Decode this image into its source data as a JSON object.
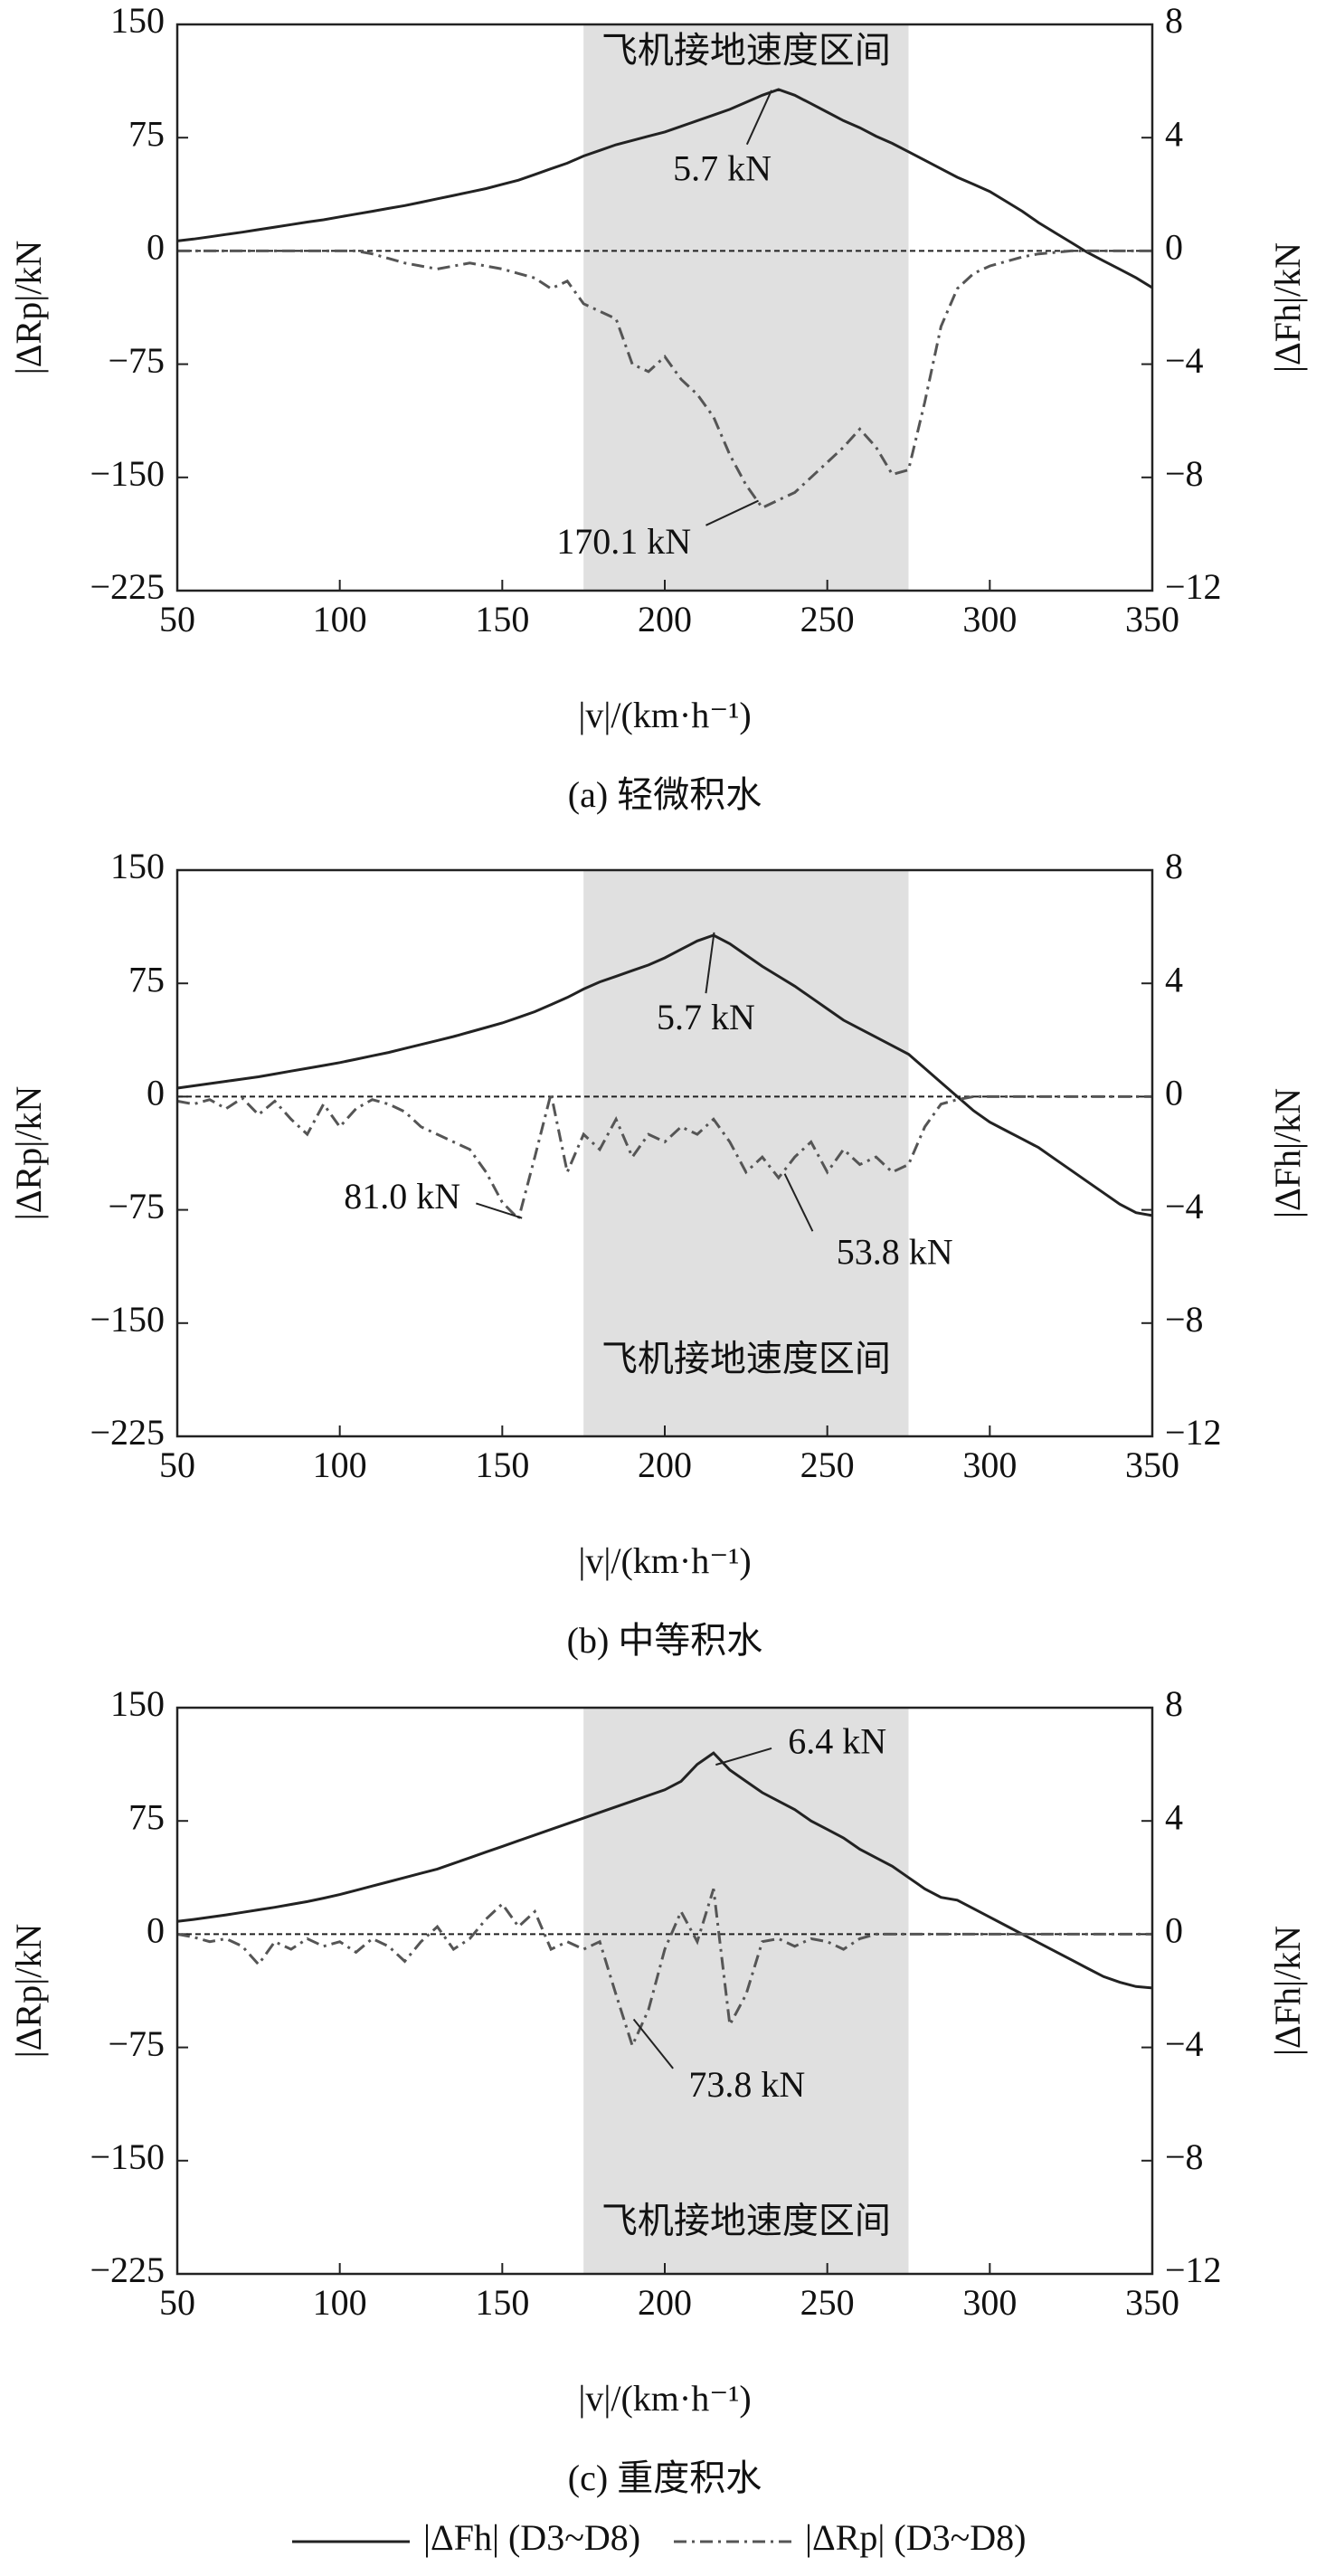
{
  "chart_data": [
    {
      "type": "line",
      "caption": "(a) 轻微积水",
      "xlabel": "|v|/(km·h⁻¹)",
      "ylabel": "|ΔRp|/kN",
      "y2label": "|ΔFh|/kN",
      "span": [
        175,
        275
      ],
      "span_label": "飞机接地速度区间",
      "annotations": [
        "5.7 kN",
        "170.1 kN"
      ],
      "xlim": [
        50,
        350
      ],
      "xticks": [
        50,
        100,
        150,
        200,
        250,
        300,
        350
      ],
      "ylim": [
        -225,
        150
      ],
      "yticks": [
        {
          "value": -225,
          "label": "−225"
        },
        {
          "value": -150,
          "label": "−150"
        },
        {
          "value": -75,
          "label": "−75"
        },
        0,
        75,
        150
      ],
      "y2lim": [
        -12,
        8
      ],
      "y2ticks": [
        {
          "value": -12,
          "label": "−12"
        },
        {
          "value": -8,
          "label": "−8"
        },
        {
          "value": -4,
          "label": "−4"
        },
        0,
        4,
        8
      ],
      "x": [
        50,
        55,
        60,
        65,
        70,
        75,
        80,
        85,
        90,
        95,
        100,
        105,
        110,
        115,
        120,
        125,
        130,
        135,
        140,
        145,
        150,
        155,
        160,
        165,
        170,
        175,
        180,
        185,
        190,
        195,
        200,
        205,
        210,
        215,
        220,
        225,
        230,
        235,
        240,
        245,
        250,
        255,
        260,
        265,
        270,
        275,
        280,
        285,
        290,
        295,
        300,
        305,
        310,
        315,
        320,
        325,
        330,
        335,
        340,
        345,
        350
      ],
      "series": [
        {
          "color": "#222222",
          "style": "solid",
          "axis": "y2",
          "values": [
            0.35,
            0.42,
            0.5,
            0.58,
            0.66,
            0.75,
            0.84,
            0.93,
            1.02,
            1.1,
            1.2,
            1.3,
            1.4,
            1.5,
            1.6,
            1.72,
            1.84,
            1.96,
            2.08,
            2.2,
            2.35,
            2.5,
            2.7,
            2.9,
            3.1,
            3.35,
            3.55,
            3.75,
            3.9,
            4.05,
            4.2,
            4.4,
            4.6,
            4.8,
            5.0,
            5.25,
            5.5,
            5.7,
            5.5,
            5.2,
            4.9,
            4.6,
            4.35,
            4.05,
            3.8,
            3.5,
            3.2,
            2.9,
            2.6,
            2.35,
            2.1,
            1.75,
            1.4,
            1.0,
            0.65,
            0.3,
            -0.05,
            -0.35,
            -0.65,
            -0.95,
            -1.3
          ]
        },
        {
          "color": "#555555",
          "style": "dashdot",
          "axis": "y",
          "values": [
            0,
            0,
            0,
            0,
            0,
            0,
            0,
            0,
            0,
            0,
            0,
            0,
            -2,
            -5,
            -8,
            -10,
            -12,
            -10,
            -8,
            -10,
            -12,
            -15,
            -18,
            -25,
            -20,
            -35,
            -40,
            -45,
            -75,
            -80,
            -70,
            -85,
            -95,
            -110,
            -135,
            -155,
            -170.1,
            -165,
            -160,
            -150,
            -140,
            -130,
            -118,
            -130,
            -148,
            -145,
            -100,
            -50,
            -25,
            -15,
            -10,
            -7,
            -4,
            -2,
            -1,
            0,
            0,
            0,
            0,
            0,
            0
          ]
        }
      ]
    },
    {
      "type": "line",
      "caption": "(b) 中等积水",
      "xlabel": "|v|/(km·h⁻¹)",
      "ylabel": "|ΔRp|/kN",
      "y2label": "|ΔFh|/kN",
      "span": [
        175,
        275
      ],
      "span_label": "飞机接地速度区间",
      "annotations": [
        "5.7 kN",
        "81.0 kN",
        "53.8 kN"
      ],
      "xlim": [
        50,
        350
      ],
      "xticks": [
        50,
        100,
        150,
        200,
        250,
        300,
        350
      ],
      "ylim": [
        -225,
        150
      ],
      "yticks": [
        {
          "value": -225,
          "label": "−225"
        },
        {
          "value": -150,
          "label": "−150"
        },
        {
          "value": -75,
          "label": "−75"
        },
        0,
        75,
        150
      ],
      "y2lim": [
        -12,
        8
      ],
      "y2ticks": [
        {
          "value": -12,
          "label": "−12"
        },
        {
          "value": -8,
          "label": "−8"
        },
        {
          "value": -4,
          "label": "−4"
        },
        0,
        4,
        8
      ],
      "x": [
        50,
        55,
        60,
        65,
        70,
        75,
        80,
        85,
        90,
        95,
        100,
        105,
        110,
        115,
        120,
        125,
        130,
        135,
        140,
        145,
        150,
        155,
        160,
        165,
        170,
        175,
        180,
        185,
        190,
        195,
        200,
        205,
        210,
        215,
        220,
        225,
        230,
        235,
        240,
        245,
        250,
        255,
        260,
        265,
        270,
        275,
        280,
        285,
        290,
        295,
        300,
        305,
        310,
        315,
        320,
        325,
        330,
        335,
        340,
        345,
        350
      ],
      "series": [
        {
          "color": "#222222",
          "style": "solid",
          "axis": "y2",
          "values": [
            0.3,
            0.38,
            0.46,
            0.54,
            0.62,
            0.7,
            0.8,
            0.9,
            1.0,
            1.1,
            1.2,
            1.32,
            1.44,
            1.56,
            1.7,
            1.84,
            1.98,
            2.12,
            2.28,
            2.44,
            2.6,
            2.8,
            3.0,
            3.25,
            3.5,
            3.8,
            4.05,
            4.25,
            4.45,
            4.65,
            4.9,
            5.2,
            5.5,
            5.7,
            5.4,
            5.0,
            4.6,
            4.25,
            3.9,
            3.5,
            3.1,
            2.7,
            2.4,
            2.1,
            1.8,
            1.5,
            1.0,
            0.5,
            0,
            -0.5,
            -0.9,
            -1.2,
            -1.5,
            -1.8,
            -2.2,
            -2.6,
            -3.0,
            -3.4,
            -3.8,
            -4.1,
            -4.2
          ]
        },
        {
          "color": "#555555",
          "style": "dashdot",
          "axis": "y",
          "values": [
            -3,
            -5,
            -2,
            -8,
            -1,
            -12,
            -3,
            -15,
            -25,
            -5,
            -20,
            -8,
            -2,
            -5,
            -10,
            -20,
            -25,
            -30,
            -35,
            -50,
            -70,
            -81.0,
            -40,
            2,
            -50,
            -25,
            -35,
            -15,
            -40,
            -25,
            -30,
            -20,
            -25,
            -15,
            -30,
            -50,
            -40,
            -53.8,
            -40,
            -30,
            -50,
            -35,
            -45,
            -40,
            -50,
            -45,
            -20,
            -5,
            -2,
            0,
            0,
            0,
            0,
            0,
            0,
            0,
            0,
            0,
            0,
            0,
            0
          ]
        }
      ]
    },
    {
      "type": "line",
      "caption": "(c) 重度积水",
      "xlabel": "|v|/(km·h⁻¹)",
      "ylabel": "|ΔRp|/kN",
      "y2label": "|ΔFh|/kN",
      "span": [
        175,
        275
      ],
      "span_label": "飞机接地速度区间",
      "annotations": [
        "6.4 kN",
        "73.8 kN"
      ],
      "xlim": [
        50,
        350
      ],
      "xticks": [
        50,
        100,
        150,
        200,
        250,
        300,
        350
      ],
      "ylim": [
        -225,
        150
      ],
      "yticks": [
        {
          "value": -225,
          "label": "−225"
        },
        {
          "value": -150,
          "label": "−150"
        },
        {
          "value": -75,
          "label": "−75"
        },
        0,
        75,
        150
      ],
      "y2lim": [
        -12,
        8
      ],
      "y2ticks": [
        {
          "value": -12,
          "label": "−12"
        },
        {
          "value": -8,
          "label": "−8"
        },
        {
          "value": -4,
          "label": "−4"
        },
        0,
        4,
        8
      ],
      "x": [
        50,
        55,
        60,
        65,
        70,
        75,
        80,
        85,
        90,
        95,
        100,
        105,
        110,
        115,
        120,
        125,
        130,
        135,
        140,
        145,
        150,
        155,
        160,
        165,
        170,
        175,
        180,
        185,
        190,
        195,
        200,
        205,
        210,
        215,
        220,
        225,
        230,
        235,
        240,
        245,
        250,
        255,
        260,
        265,
        270,
        275,
        280,
        285,
        290,
        295,
        300,
        305,
        310,
        315,
        320,
        325,
        330,
        335,
        340,
        345,
        350
      ],
      "series": [
        {
          "name": "|ΔFh| (D3~D8)",
          "color": "#222222",
          "style": "solid",
          "axis": "y2",
          "values": [
            0.45,
            0.52,
            0.6,
            0.68,
            0.77,
            0.86,
            0.95,
            1.05,
            1.15,
            1.27,
            1.4,
            1.55,
            1.7,
            1.85,
            2.0,
            2.15,
            2.3,
            2.5,
            2.7,
            2.9,
            3.1,
            3.3,
            3.5,
            3.7,
            3.9,
            4.1,
            4.3,
            4.5,
            4.7,
            4.9,
            5.1,
            5.4,
            6.0,
            6.4,
            5.8,
            5.4,
            5.0,
            4.7,
            4.4,
            4.0,
            3.7,
            3.4,
            3.0,
            2.7,
            2.4,
            2.0,
            1.6,
            1.3,
            1.2,
            0.9,
            0.6,
            0.3,
            0,
            -0.3,
            -0.6,
            -0.9,
            -1.2,
            -1.5,
            -1.7,
            -1.85,
            -1.9
          ]
        },
        {
          "name": "|ΔRp| (D3~D8)",
          "color": "#555555",
          "style": "dashdot",
          "axis": "y",
          "values": [
            0,
            -2,
            -5,
            -3,
            -8,
            -20,
            -5,
            -10,
            -3,
            -8,
            -5,
            -12,
            -3,
            -8,
            -18,
            -5,
            5,
            -10,
            -3,
            10,
            20,
            5,
            15,
            -10,
            -5,
            -10,
            -5,
            -40,
            -73.8,
            -50,
            -10,
            15,
            -5,
            30,
            -60,
            -40,
            -5,
            -3,
            -8,
            -3,
            -5,
            -10,
            -3,
            0,
            0,
            0,
            0,
            0,
            0,
            0,
            0,
            0,
            0,
            0,
            0,
            0,
            0,
            0,
            0,
            0,
            0
          ]
        }
      ]
    }
  ]
}
